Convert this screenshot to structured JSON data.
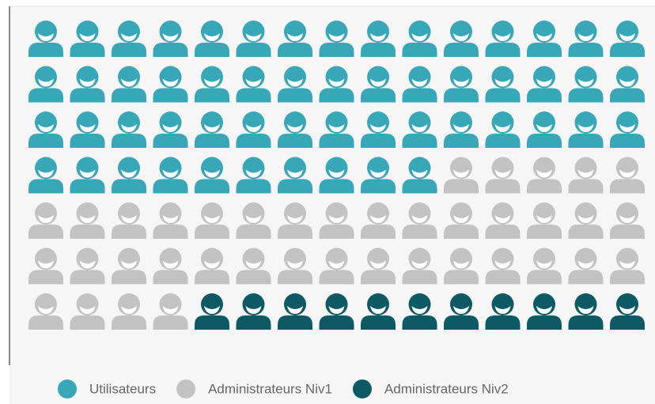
{
  "chart_data": {
    "type": "pictogram",
    "columns": 15,
    "series": [
      {
        "name": "Utilisateurs",
        "color": "#38a7b7",
        "values": [
          55
        ]
      },
      {
        "name": "Administrateurs Niv1",
        "color": "#c3c3c3",
        "values": [
          39
        ]
      },
      {
        "name": "Administrateurs Niv2",
        "color": "#0d5a65",
        "values": [
          11
        ]
      }
    ]
  }
}
